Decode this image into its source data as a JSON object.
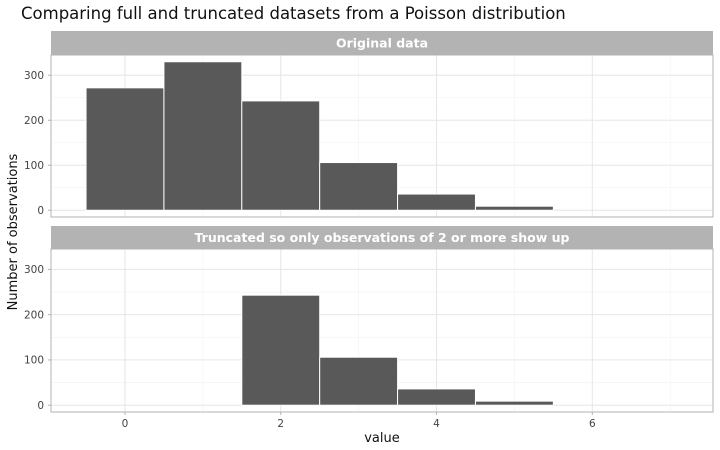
{
  "chart_data": {
    "type": "bar",
    "title": "Comparing full and truncated datasets from a Poisson distribution",
    "xlabel": "value",
    "ylabel": "Number of observations",
    "xlim": [
      -0.95,
      7.55
    ],
    "ylim": [
      -15,
      345
    ],
    "x_ticks": [
      0,
      2,
      4,
      6
    ],
    "y_ticks": [
      0,
      100,
      200,
      300
    ],
    "grid": true,
    "bar_color": "#595959",
    "strip_color": "#b3b3b3",
    "panels": [
      {
        "strip_label": "Original data",
        "x": [
          0,
          1,
          2,
          3,
          4,
          5
        ],
        "values": [
          272,
          330,
          243,
          106,
          36,
          9
        ]
      },
      {
        "strip_label": "Truncated so only observations of 2 or more show up",
        "x": [
          2,
          3,
          4,
          5
        ],
        "values": [
          243,
          106,
          36,
          9
        ]
      }
    ]
  }
}
